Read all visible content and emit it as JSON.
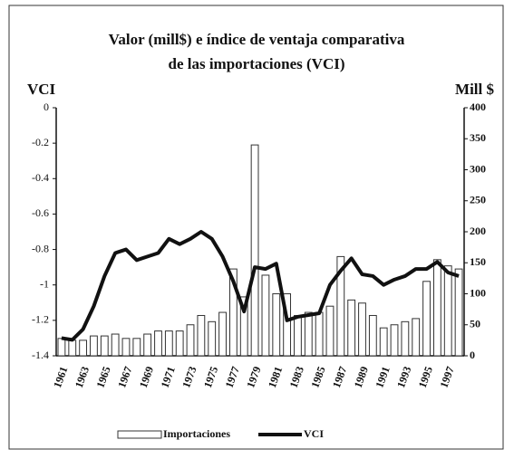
{
  "chart_data": {
    "type": "bar_line",
    "title": "Valor (mill$) e índice de ventaja comparativa",
    "subtitle": "de las importaciones (VCI)",
    "y_label": "VCI",
    "y2_label": "Mill $",
    "categories": [
      "1961",
      null,
      "1963",
      null,
      "1965",
      null,
      "1967",
      null,
      "1969",
      null,
      "1971",
      null,
      "1973",
      null,
      "1975",
      null,
      "1977",
      null,
      "1979",
      null,
      "1981",
      null,
      "1983",
      null,
      "1985",
      null,
      "1987",
      null,
      "1989",
      null,
      "1991",
      null,
      "1993",
      null,
      "1995",
      null,
      "1997",
      null
    ],
    "series": [
      {
        "name": "Importaciones",
        "type": "bar",
        "axis": "y2",
        "color": "#ffffff",
        "values": [
          28,
          25,
          25,
          32,
          32,
          35,
          28,
          28,
          35,
          40,
          40,
          40,
          50,
          65,
          55,
          70,
          140,
          95,
          340,
          130,
          100,
          100,
          65,
          70,
          70,
          80,
          160,
          90,
          85,
          65,
          45,
          50,
          55,
          60,
          120,
          155,
          145,
          140
        ]
      },
      {
        "name": "VCI",
        "type": "line",
        "color": "#111111",
        "values": [
          -1.3,
          -1.31,
          -1.25,
          -1.12,
          -0.95,
          -0.82,
          -0.8,
          -0.86,
          -0.84,
          -0.82,
          -0.74,
          -0.77,
          -0.74,
          -0.7,
          -0.74,
          -0.84,
          -0.98,
          -1.15,
          -0.9,
          -0.91,
          -0.88,
          -1.2,
          -1.18,
          -1.17,
          -1.16,
          -1.0,
          -0.92,
          -0.85,
          -0.94,
          -0.95,
          -1.0,
          -0.97,
          -0.95,
          -0.91,
          -0.91,
          -0.87,
          -0.93,
          -0.95
        ]
      }
    ],
    "ylim": [
      -1.4,
      0
    ],
    "yticks": [
      0,
      -0.2,
      -0.4,
      -0.6,
      -0.8,
      -1,
      -1.2,
      -1.4
    ],
    "y2lim": [
      0,
      400
    ],
    "y2ticks": [
      0,
      50,
      100,
      150,
      200,
      250,
      300,
      350,
      400
    ]
  }
}
